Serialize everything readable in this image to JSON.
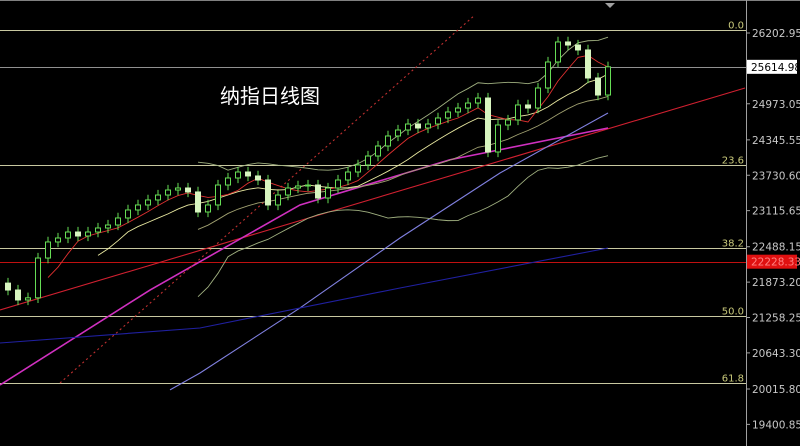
{
  "title": "纳指日线图",
  "colors": {
    "background": "#000000",
    "candle_up": "#66dd55",
    "candle_down": "#d8f5c0",
    "fib_line": "#c8c8a0",
    "trendline": "#d02030",
    "ma_purple": "#d030c0",
    "ma_lavender": "#8080e0",
    "ma_blue": "#2020a0",
    "dotted": "#c03030",
    "boll": "#a0b080",
    "ma_short": "#e03030",
    "ma_mid": "#e8e8a0"
  },
  "chart_data": {
    "type": "candlestick",
    "ylim": [
      19300,
      26500
    ],
    "closes": [
      21736,
      21563,
      21600,
      22292,
      22571,
      22640,
      22744,
      22675,
      22744,
      22814,
      22866,
      22988,
      23127,
      23214,
      23301,
      23387,
      23474,
      23509,
      23440,
      23092,
      23214,
      23561,
      23683,
      23787,
      23718,
      23648,
      23214,
      23387,
      23509,
      23544,
      23561,
      23335,
      23509,
      23648,
      23787,
      23909,
      24065,
      24239,
      24413,
      24517,
      24621,
      24552,
      24621,
      24726,
      24830,
      24899,
      24986,
      25073,
      24135,
      24604,
      24691,
      24952,
      24899,
      25247,
      25699,
      26047,
      25994,
      25908,
      25421,
      25125,
      25615
    ],
    "y_ticks": [
      "26202.95",
      "24973.05",
      "24345.55",
      "23730.60",
      "23115.65",
      "22488.15",
      "21873.20",
      "21258.25",
      "20643.30",
      "20015.80",
      "19400.85"
    ],
    "current_price": "25614.98",
    "marked_price": "22228.33",
    "fib_levels": [
      {
        "label": "0.0",
        "price": 26255
      },
      {
        "label": "23.6",
        "price": 23909
      },
      {
        "label": "38.2",
        "price": 22466
      },
      {
        "label": "50.0",
        "price": 21284
      },
      {
        "label": "61.8",
        "price": 20112
      }
    ],
    "overlays": [
      {
        "name": "trendline",
        "style": "solid",
        "points": [
          [
            -0.8,
            21389
          ],
          [
            73.7,
            25247
          ]
        ]
      },
      {
        "name": "ma_purple",
        "style": "solid",
        "points": [
          [
            -0.8,
            20085
          ],
          [
            14.2,
            21736
          ],
          [
            29.2,
            23214
          ],
          [
            44.2,
            24000
          ],
          [
            60,
            24552
          ]
        ]
      },
      {
        "name": "ma_lavender",
        "style": "solid",
        "points": [
          [
            16.2,
            20000
          ],
          [
            19.2,
            20294
          ],
          [
            29.2,
            21424
          ],
          [
            39.2,
            22640
          ],
          [
            49.2,
            23770
          ],
          [
            60,
            24813
          ]
        ]
      },
      {
        "name": "ma_blue",
        "style": "solid",
        "points": [
          [
            -0.8,
            20815
          ],
          [
            19.2,
            21076
          ],
          [
            39.2,
            21771
          ],
          [
            60,
            22466
          ]
        ]
      },
      {
        "name": "dotted",
        "style": "dotted",
        "points": [
          [
            5.2,
            20120
          ],
          [
            46.7,
            26517
          ]
        ]
      }
    ]
  }
}
